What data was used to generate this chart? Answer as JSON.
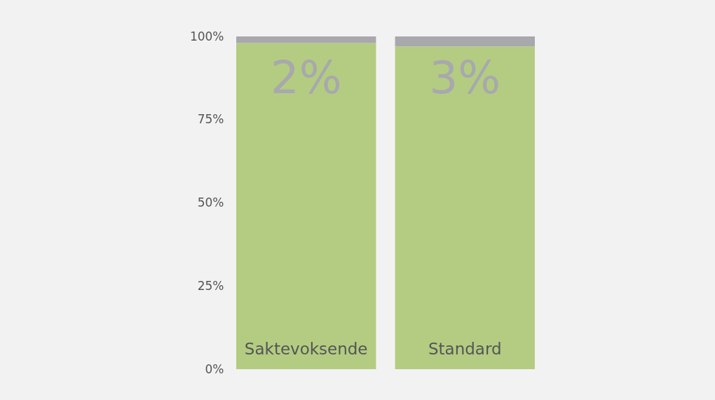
{
  "chart_data": {
    "type": "bar",
    "stacked": true,
    "categories": [
      "Saktevoksende",
      "Standard"
    ],
    "series": [
      {
        "color": "#b3cc82",
        "values": [
          98,
          97
        ]
      },
      {
        "color": "#a8a8ad",
        "values": [
          2,
          3
        ],
        "value_labels": [
          "2%",
          "3%"
        ]
      }
    ],
    "ylim": [
      0,
      100
    ],
    "yticks": [
      {
        "value": 0,
        "label": "0%"
      },
      {
        "value": 25,
        "label": "25%"
      },
      {
        "value": 50,
        "label": "50%"
      },
      {
        "value": 75,
        "label": "75%"
      },
      {
        "value": 100,
        "label": "100%"
      }
    ],
    "grid": false,
    "legend": false
  }
}
